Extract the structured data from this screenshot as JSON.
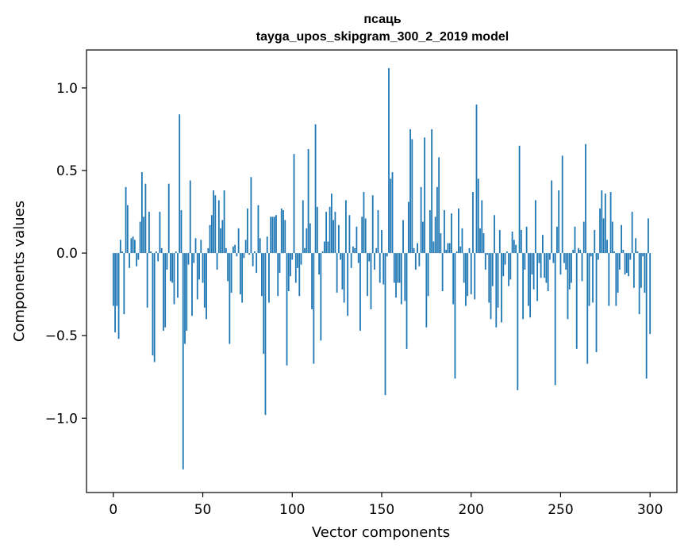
{
  "chart_data": {
    "type": "bar",
    "title_line1": "псаць",
    "title_line2": "tayga_upos_skipgram_300_2_2019 model",
    "xlabel": "Vector components",
    "ylabel": "Components values",
    "xlim": [
      -15,
      315
    ],
    "ylim": [
      -1.45,
      1.23
    ],
    "xticks": [
      0,
      50,
      100,
      150,
      200,
      250,
      300
    ],
    "xtick_labels": [
      "0",
      "50",
      "100",
      "150",
      "200",
      "250",
      "300"
    ],
    "yticks": [
      -1.0,
      -0.5,
      0.0,
      0.5,
      1.0
    ],
    "ytick_labels": [
      "−1.0",
      "−0.5",
      "0.0",
      "0.5",
      "1.0"
    ],
    "bar_color": "#1f77b4",
    "grid": false,
    "values": [
      -0.32,
      -0.48,
      -0.32,
      -0.52,
      0.08,
      0.01,
      -0.37,
      0.4,
      0.29,
      -0.09,
      0.09,
      0.1,
      0.08,
      -0.08,
      -0.04,
      0.19,
      0.49,
      0.22,
      0.42,
      -0.33,
      0.25,
      0.01,
      -0.62,
      -0.66,
      0.01,
      -0.05,
      0.25,
      0.03,
      -0.47,
      -0.45,
      -0.1,
      0.42,
      -0.17,
      -0.18,
      -0.31,
      0.01,
      -0.27,
      0.84,
      0.26,
      -1.31,
      -0.55,
      -0.47,
      -0.07,
      0.44,
      -0.38,
      -0.06,
      0.09,
      -0.28,
      -0.16,
      0.08,
      -0.18,
      -0.33,
      -0.4,
      0.03,
      0.17,
      0.23,
      0.38,
      0.35,
      -0.1,
      0.32,
      0.15,
      0.2,
      0.38,
      0.03,
      -0.17,
      -0.55,
      -0.24,
      0.04,
      0.05,
      -0.02,
      0.15,
      -0.25,
      -0.3,
      -0.03,
      0.08,
      0.27,
      -0.01,
      0.46,
      -0.08,
      0.01,
      -0.12,
      0.29,
      0.09,
      -0.26,
      -0.61,
      -0.98,
      0.1,
      -0.3,
      0.22,
      0.22,
      0.22,
      0.23,
      -0.26,
      -0.12,
      0.27,
      0.26,
      0.2,
      -0.68,
      -0.23,
      -0.14,
      -0.04,
      0.6,
      -0.18,
      -0.09,
      -0.26,
      -0.07,
      0.32,
      0.03,
      0.15,
      0.63,
      0.18,
      -0.34,
      -0.67,
      0.78,
      0.28,
      -0.13,
      -0.53,
      0.01,
      0.07,
      0.25,
      0.07,
      0.28,
      0.36,
      0.2,
      0.25,
      -0.24,
      0.17,
      -0.04,
      -0.22,
      -0.3,
      0.32,
      -0.38,
      0.23,
      -0.09,
      0.04,
      0.03,
      0.16,
      -0.06,
      -0.47,
      0.22,
      0.37,
      0.21,
      -0.26,
      -0.05,
      -0.34,
      0.35,
      -0.1,
      0.03,
      0.26,
      -0.18,
      0.14,
      -0.19,
      -0.86,
      -0.02,
      1.12,
      0.45,
      0.49,
      -0.18,
      -0.27,
      -0.18,
      -0.18,
      -0.31,
      0.2,
      -0.29,
      -0.58,
      0.31,
      0.75,
      0.69,
      0.03,
      -0.1,
      0.06,
      -0.08,
      0.4,
      0.19,
      0.7,
      -0.45,
      -0.26,
      0.26,
      0.75,
      0.07,
      0.22,
      0.4,
      0.58,
      0.12,
      -0.23,
      0.26,
      0.02,
      0.06,
      0.06,
      0.24,
      -0.31,
      -0.76,
      0.01,
      0.27,
      0.04,
      0.15,
      -0.18,
      -0.32,
      -0.26,
      0.03,
      -0.25,
      0.37,
      -0.28,
      0.9,
      0.45,
      0.15,
      0.32,
      0.12,
      -0.1,
      -0.01,
      -0.3,
      -0.4,
      -0.2,
      0.23,
      -0.45,
      -0.33,
      0.14,
      -0.42,
      -0.14,
      -0.07,
      0.01,
      -0.2,
      -0.16,
      0.13,
      0.08,
      0.05,
      -0.83,
      0.65,
      0.14,
      -0.4,
      -0.1,
      0.16,
      -0.32,
      -0.39,
      -0.13,
      -0.22,
      0.32,
      -0.29,
      -0.06,
      -0.15,
      0.11,
      -0.15,
      -0.18,
      -0.23,
      -0.04,
      0.44,
      -0.06,
      -0.8,
      0.16,
      0.38,
      -0.13,
      0.59,
      -0.06,
      -0.1,
      -0.4,
      -0.22,
      -0.18,
      0.02,
      0.16,
      -0.58,
      0.03,
      0.02,
      -0.17,
      0.19,
      0.66,
      -0.67,
      -0.32,
      -0.02,
      -0.3,
      0.14,
      -0.6,
      -0.04,
      0.27,
      0.38,
      0.21,
      0.36,
      0.08,
      -0.32,
      0.37,
      0.19,
      0.01,
      -0.32,
      -0.24,
      -0.1,
      0.17,
      0.02,
      -0.13,
      -0.12,
      -0.14,
      -0.04,
      0.25,
      -0.21,
      0.09,
      0.01,
      -0.37,
      -0.21,
      -0.02,
      -0.24,
      -0.76,
      0.21,
      -0.49
    ]
  }
}
